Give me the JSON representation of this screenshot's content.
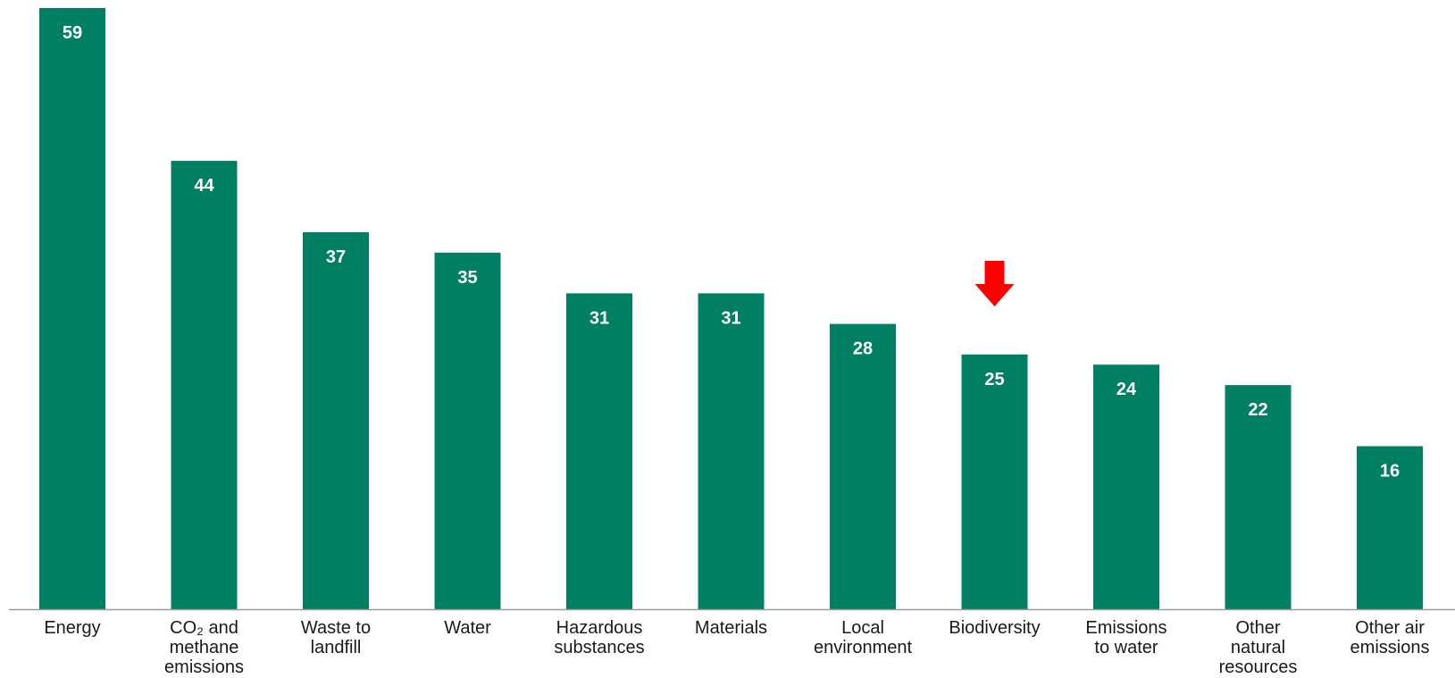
{
  "colors": {
    "bar": "#007F63",
    "axis": "#9a9a9a",
    "highlight_arrow": "#ff0000",
    "value_text": "#ffffff",
    "label_text": "#1a1a1a"
  },
  "chart_data": {
    "type": "bar",
    "title": "",
    "xlabel": "",
    "ylabel": "",
    "ylim": [
      0,
      60
    ],
    "grid": false,
    "legend": "none",
    "categories": [
      "Energy",
      "CO₂ and methane emissions",
      "Waste to landfill",
      "Water",
      "Hazardous substances",
      "Materials",
      "Local environment",
      "Biodiversity",
      "Emissions to water",
      "Other natural resources",
      "Other air emissions"
    ],
    "category_lines": [
      [
        "Energy"
      ],
      [
        "CO₂ and",
        "methane",
        "emissions"
      ],
      [
        "Waste to",
        "landfill"
      ],
      [
        "Water"
      ],
      [
        "Hazardous",
        "substances"
      ],
      [
        "Materials"
      ],
      [
        "Local",
        "environment"
      ],
      [
        "Biodiversity"
      ],
      [
        "Emissions",
        "to water"
      ],
      [
        "Other",
        "natural",
        "resources"
      ],
      [
        "Other air",
        "emissions"
      ]
    ],
    "values": [
      59,
      44,
      37,
      35,
      31,
      31,
      28,
      25,
      24,
      22,
      16
    ],
    "highlight": {
      "category": "Biodiversity",
      "icon": "red-down-arrow-icon"
    }
  }
}
